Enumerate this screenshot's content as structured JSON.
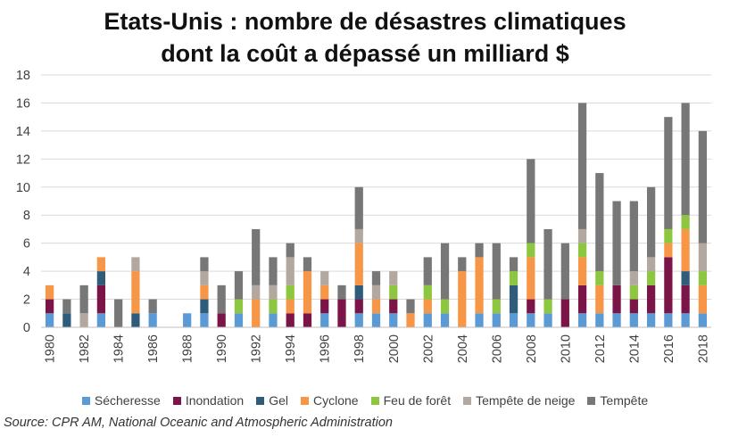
{
  "chart_data": {
    "type": "stacked_bar",
    "title_line1": "Etats-Unis : nombre de désastres climatiques",
    "title_line2": "dont la coût a dépassé un milliard $",
    "source": "Source: CPR AM, National Oceanic and Atmospheric Administration",
    "ylim": [
      0,
      18
    ],
    "yticks": [
      0,
      2,
      4,
      6,
      8,
      10,
      12,
      14,
      16,
      18
    ],
    "grid": true,
    "legend_position": "bottom",
    "categories": [
      "1980",
      "1981",
      "1982",
      "1983",
      "1984",
      "1985",
      "1986",
      "1987",
      "1988",
      "1989",
      "1990",
      "1991",
      "1992",
      "1993",
      "1994",
      "1995",
      "1996",
      "1997",
      "1998",
      "1999",
      "2000",
      "2001",
      "2002",
      "2003",
      "2004",
      "2005",
      "2006",
      "2007",
      "2008",
      "2009",
      "2010",
      "2011",
      "2012",
      "2013",
      "2014",
      "2015",
      "2016",
      "2017",
      "2018"
    ],
    "xtick_labels": [
      "1980",
      "1982",
      "1984",
      "1986",
      "1988",
      "1990",
      "1992",
      "1994",
      "1996",
      "1998",
      "2000",
      "2002",
      "2004",
      "2006",
      "2008",
      "2010",
      "2012",
      "2014",
      "2016",
      "2018"
    ],
    "series": [
      {
        "name": "Sécheresse",
        "color": "#5B9BD5",
        "values": [
          1,
          0,
          0,
          1,
          0,
          0,
          1,
          0,
          1,
          1,
          0,
          1,
          0,
          1,
          0,
          0,
          1,
          0,
          1,
          1,
          1,
          0,
          1,
          1,
          0,
          1,
          1,
          1,
          1,
          1,
          0,
          1,
          1,
          1,
          1,
          1,
          1,
          1,
          1
        ]
      },
      {
        "name": "Inondation",
        "color": "#7B1547",
        "values": [
          1,
          0,
          0,
          2,
          0,
          0,
          0,
          0,
          0,
          0,
          1,
          0,
          0,
          0,
          1,
          1,
          1,
          2,
          1,
          0,
          1,
          0,
          0,
          0,
          0,
          0,
          0,
          0,
          1,
          0,
          2,
          2,
          0,
          2,
          1,
          2,
          4,
          2,
          0
        ]
      },
      {
        "name": "Gel",
        "color": "#2E5C7A",
        "values": [
          0,
          1,
          0,
          1,
          0,
          1,
          0,
          0,
          0,
          1,
          0,
          0,
          0,
          0,
          0,
          0,
          0,
          0,
          1,
          0,
          0,
          0,
          0,
          0,
          0,
          0,
          0,
          2,
          0,
          0,
          0,
          0,
          0,
          0,
          0,
          0,
          0,
          1,
          0
        ]
      },
      {
        "name": "Cyclone",
        "color": "#F79646",
        "values": [
          1,
          0,
          0,
          1,
          0,
          3,
          0,
          0,
          0,
          1,
          0,
          0,
          2,
          0,
          1,
          3,
          1,
          0,
          3,
          1,
          0,
          1,
          1,
          0,
          4,
          4,
          0,
          0,
          3,
          0,
          0,
          2,
          2,
          0,
          0,
          0,
          1,
          3,
          2
        ]
      },
      {
        "name": "Feu de forêt",
        "color": "#8DC63F",
        "values": [
          0,
          0,
          0,
          0,
          0,
          0,
          0,
          0,
          0,
          0,
          0,
          1,
          0,
          1,
          1,
          0,
          0,
          0,
          0,
          0,
          1,
          0,
          1,
          1,
          0,
          0,
          1,
          1,
          1,
          1,
          0,
          1,
          1,
          0,
          1,
          1,
          1,
          1,
          1
        ]
      },
      {
        "name": "Tempête de neige",
        "color": "#B3A8A0",
        "values": [
          0,
          0,
          1,
          0,
          0,
          1,
          0,
          0,
          0,
          1,
          0,
          0,
          1,
          1,
          2,
          0,
          1,
          0,
          1,
          1,
          1,
          0,
          0,
          0,
          0,
          0,
          0,
          0,
          0,
          0,
          0,
          1,
          0,
          0,
          1,
          1,
          0,
          0,
          2
        ]
      },
      {
        "name": "Tempête",
        "color": "#777777",
        "values": [
          0,
          1,
          2,
          0,
          2,
          0,
          1,
          0,
          0,
          1,
          2,
          2,
          4,
          2,
          1,
          1,
          0,
          1,
          3,
          1,
          0,
          1,
          2,
          4,
          1,
          1,
          4,
          1,
          6,
          5,
          4,
          9,
          7,
          6,
          5,
          5,
          8,
          8,
          8
        ]
      }
    ]
  }
}
